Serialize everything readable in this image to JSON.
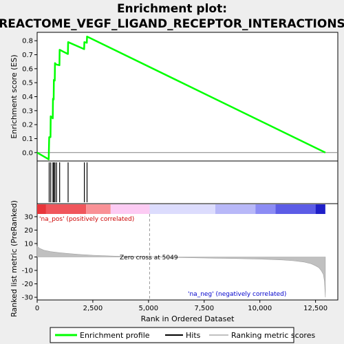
{
  "chart_data": {
    "type": "line",
    "title_line1": "Enrichment plot:",
    "title_line2": "REACTOME_VEGF_LIGAND_RECEPTOR_INTERACTIONS",
    "es_panel": {
      "ylabel": "Enrichment score (ES)",
      "ylim": [
        -0.06,
        0.86
      ],
      "yticks": [
        "0.0",
        "0.1",
        "0.2",
        "0.3",
        "0.4",
        "0.5",
        "0.6",
        "0.7",
        "0.8"
      ],
      "ytick_values": [
        0.0,
        0.1,
        0.2,
        0.3,
        0.4,
        0.5,
        0.6,
        0.7,
        0.8
      ],
      "series": [
        {
          "name": "Enrichment profile",
          "color": "#00ff00",
          "x": [
            0,
            520,
            540,
            600,
            610,
            700,
            710,
            740,
            750,
            790,
            800,
            860,
            870,
            1000,
            1010,
            1380,
            1390,
            2110,
            2120,
            2230,
            2240,
            12940
          ],
          "y": [
            0.0,
            -0.048,
            0.11,
            0.11,
            0.26,
            0.245,
            0.385,
            0.38,
            0.52,
            0.515,
            0.64,
            0.63,
            0.63,
            0.625,
            0.735,
            0.705,
            0.79,
            0.74,
            0.79,
            0.785,
            0.83,
            0.0
          ]
        }
      ]
    },
    "hits": {
      "name": "Hits",
      "x": [
        540,
        610,
        710,
        750,
        800,
        870,
        1010,
        1390,
        2120,
        2240
      ]
    },
    "ranked_panel": {
      "ylabel": "Ranked list metric (PreRanked)",
      "ylim": [
        -32,
        32
      ],
      "yticks": [
        "30",
        "20",
        "10",
        "0",
        "-10",
        "-20",
        "-30"
      ],
      "ytick_values": [
        30,
        20,
        10,
        0,
        -10,
        -20,
        -30
      ],
      "xlabel": "Rank in Ordered Dataset",
      "xlim": [
        0,
        13500
      ],
      "xticks": [
        "0",
        "2,500",
        "5,000",
        "7,500",
        "10,000",
        "12,500"
      ],
      "xtick_values": [
        0,
        2500,
        5000,
        7500,
        10000,
        12500
      ],
      "series_name": "Ranking metric scores",
      "metric_x": [
        0,
        100,
        300,
        600,
        1000,
        1500,
        2000,
        2500,
        3000,
        3500,
        4000,
        4500,
        5049,
        6000,
        7000,
        8000,
        9000,
        10000,
        11000,
        11500,
        12000,
        12300,
        12500,
        12650,
        12750,
        12850,
        12900,
        12940
      ],
      "metric_y": [
        8,
        6.5,
        5,
        4,
        3.2,
        2.4,
        1.8,
        1.3,
        0.9,
        0.6,
        0.4,
        0.2,
        0,
        -0.3,
        -0.6,
        -0.9,
        -1.2,
        -1.6,
        -2.2,
        -2.8,
        -3.8,
        -5,
        -6.5,
        -8,
        -10,
        -13,
        -18,
        -30
      ],
      "zero_cross_label": "Zero cross at 5049",
      "zero_cross_x": 5049,
      "pos_label": "'na_pos' (positively correlated)",
      "neg_label": "'na_neg' (negatively correlated)",
      "pos_color": "#cc0000",
      "neg_color": "#0000cc"
    },
    "heat_bar": [
      {
        "x0": 0,
        "x1": 400,
        "color": "#e8363b"
      },
      {
        "x0": 400,
        "x1": 2200,
        "color": "#f0565c"
      },
      {
        "x0": 2200,
        "x1": 3300,
        "color": "#f99196"
      },
      {
        "x0": 3300,
        "x1": 5050,
        "color": "#fccbf3"
      },
      {
        "x0": 5050,
        "x1": 8000,
        "color": "#dcdcfd"
      },
      {
        "x0": 8000,
        "x1": 9800,
        "color": "#b8b8f8"
      },
      {
        "x0": 9800,
        "x1": 10700,
        "color": "#8c8cf4"
      },
      {
        "x0": 10700,
        "x1": 12500,
        "color": "#5c5ce6"
      },
      {
        "x0": 12500,
        "x1": 12940,
        "color": "#1f1fc8"
      }
    ],
    "legend": [
      {
        "label": "Enrichment profile",
        "color": "#00ff00"
      },
      {
        "label": "Hits",
        "color": "#000000"
      },
      {
        "label": "Ranking metric scores",
        "color": "#c0c0c0"
      }
    ]
  }
}
